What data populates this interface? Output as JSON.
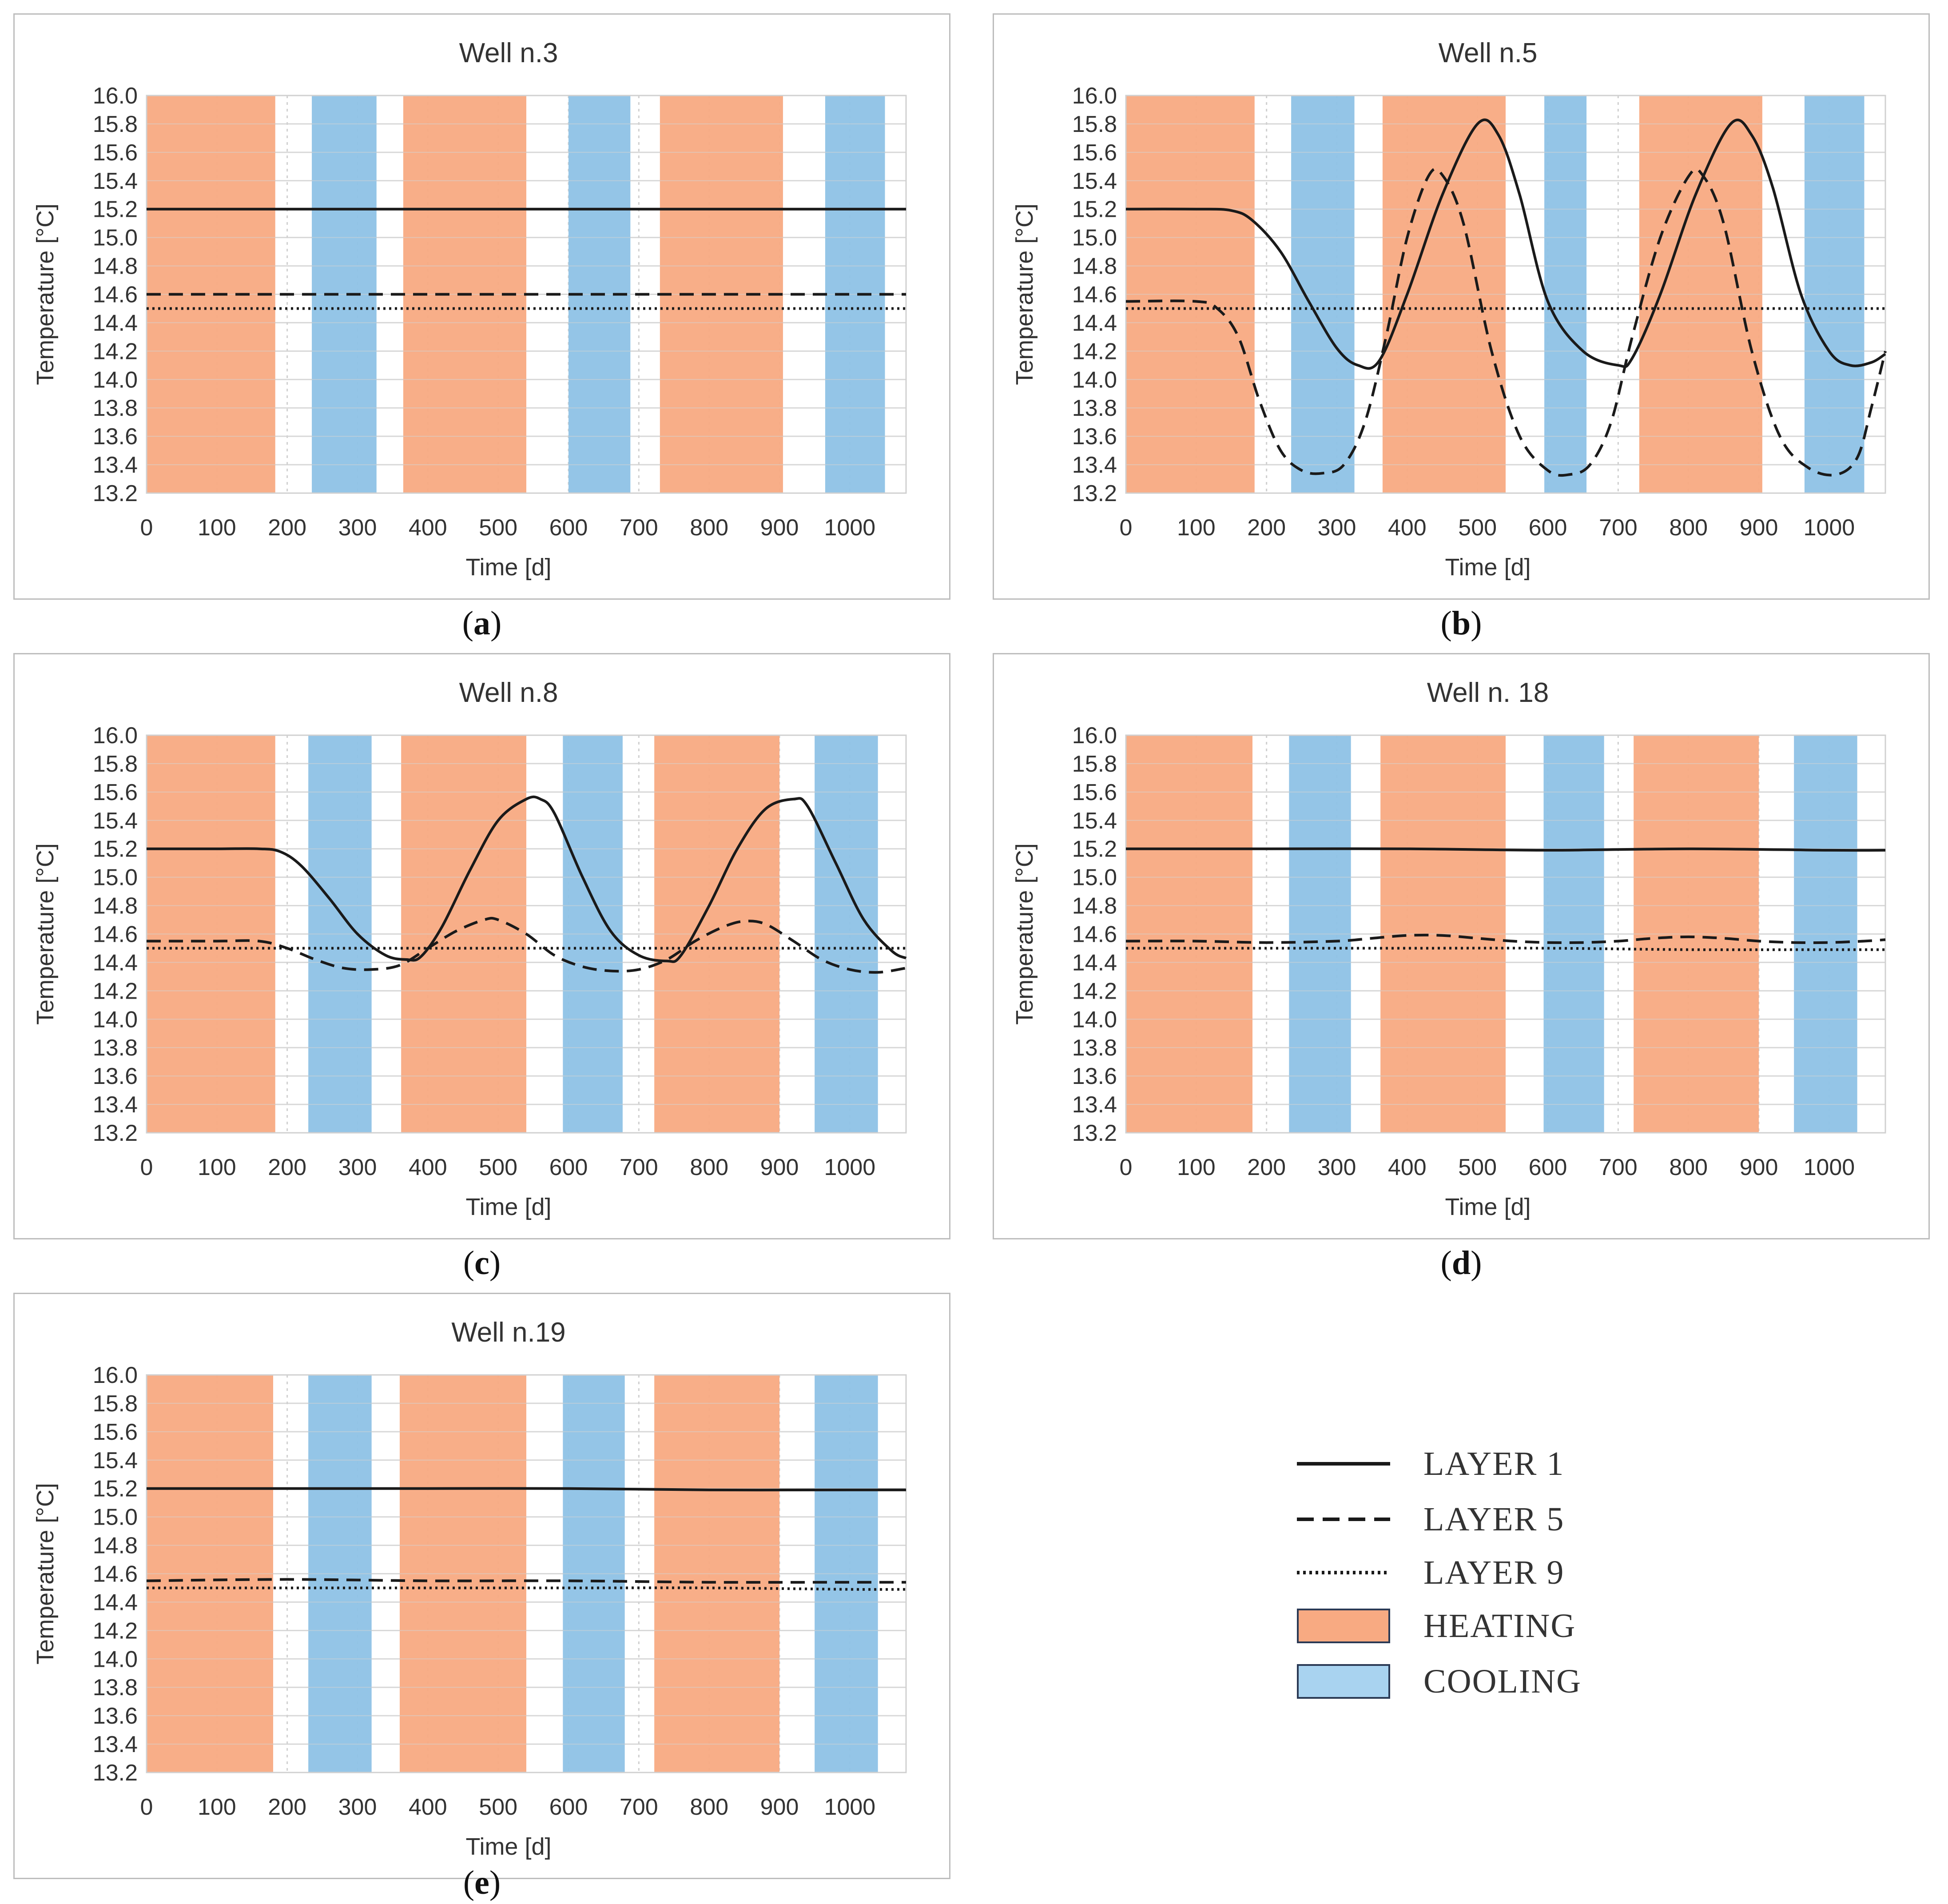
{
  "legend": {
    "layer1": "LAYER 1",
    "layer5": "LAYER 5",
    "layer9": "LAYER 9",
    "heating": "HEATING",
    "cooling": "COOLING"
  },
  "colors": {
    "heating": "#F8AA82",
    "cooling": "#8EC2E6",
    "line_dark": "#1a1a1a",
    "line_brown": "#8B4A2B"
  },
  "chart_data": [
    {
      "type": "line",
      "letter": "a",
      "title": "Well n.3",
      "xlabel": "Time [d]",
      "ylabel": "Temperature [°C]",
      "xlim": [
        0,
        1080
      ],
      "ylim": [
        13.2,
        16.0
      ],
      "xticks": [
        0,
        100,
        200,
        300,
        400,
        500,
        600,
        700,
        800,
        900,
        1000
      ],
      "yticks": [
        13.2,
        13.4,
        13.6,
        13.8,
        14.0,
        14.2,
        14.4,
        14.6,
        14.8,
        15.0,
        15.2,
        15.4,
        15.6,
        15.8,
        16.0
      ],
      "heating_periods": [
        [
          0,
          183
        ],
        [
          365,
          540
        ],
        [
          730,
          905
        ]
      ],
      "cooling_periods": [
        [
          235,
          327
        ],
        [
          600,
          688
        ],
        [
          965,
          1050
        ]
      ],
      "series": [
        {
          "name": "LAYER 1",
          "x": [
            0,
            200,
            400,
            600,
            800,
            1000,
            1080
          ],
          "y": [
            15.2,
            15.2,
            15.2,
            15.2,
            15.2,
            15.2,
            15.2
          ]
        },
        {
          "name": "LAYER 5",
          "x": [
            0,
            200,
            400,
            600,
            800,
            1000,
            1080
          ],
          "y": [
            14.6,
            14.6,
            14.6,
            14.6,
            14.6,
            14.6,
            14.6
          ]
        },
        {
          "name": "LAYER 9",
          "x": [
            0,
            200,
            400,
            600,
            800,
            1000,
            1080
          ],
          "y": [
            14.5,
            14.5,
            14.5,
            14.5,
            14.5,
            14.5,
            14.5
          ]
        }
      ]
    },
    {
      "type": "line",
      "letter": "b",
      "title": "Well n.5",
      "xlabel": "Time [d]",
      "ylabel": "Temperature [°C]",
      "xlim": [
        0,
        1080
      ],
      "ylim": [
        13.2,
        16.0
      ],
      "xticks": [
        0,
        100,
        200,
        300,
        400,
        500,
        600,
        700,
        800,
        900,
        1000
      ],
      "yticks": [
        13.2,
        13.4,
        13.6,
        13.8,
        14.0,
        14.2,
        14.4,
        14.6,
        14.8,
        15.0,
        15.2,
        15.4,
        15.6,
        15.8,
        16.0
      ],
      "heating_periods": [
        [
          0,
          183
        ],
        [
          365,
          540
        ],
        [
          730,
          905
        ]
      ],
      "cooling_periods": [
        [
          235,
          325
        ],
        [
          595,
          655
        ],
        [
          965,
          1050
        ]
      ],
      "series": [
        {
          "name": "LAYER 1",
          "x": [
            0,
            100,
            150,
            180,
            220,
            260,
            300,
            330,
            360,
            400,
            450,
            500,
            530,
            560,
            600,
            650,
            700,
            720,
            760,
            810,
            860,
            890,
            920,
            960,
            1000,
            1030,
            1060,
            1080
          ],
          "y": [
            15.2,
            15.2,
            15.19,
            15.12,
            14.9,
            14.55,
            14.22,
            14.1,
            14.13,
            14.6,
            15.3,
            15.8,
            15.72,
            15.3,
            14.55,
            14.2,
            14.1,
            14.15,
            14.6,
            15.3,
            15.8,
            15.72,
            15.35,
            14.6,
            14.2,
            14.1,
            14.12,
            14.18
          ]
        },
        {
          "name": "LAYER 5",
          "x": [
            0,
            100,
            130,
            160,
            190,
            220,
            250,
            280,
            310,
            340,
            370,
            400,
            430,
            450,
            480,
            520,
            560,
            600,
            630,
            660,
            690,
            720,
            760,
            800,
            820,
            850,
            890,
            930,
            970,
            1010,
            1040,
            1060,
            1080
          ],
          "y": [
            14.55,
            14.55,
            14.5,
            14.3,
            13.85,
            13.5,
            13.36,
            13.34,
            13.4,
            13.7,
            14.3,
            15.0,
            15.43,
            15.44,
            15.1,
            14.2,
            13.6,
            13.36,
            13.33,
            13.4,
            13.7,
            14.3,
            15.0,
            15.43,
            15.44,
            15.1,
            14.2,
            13.6,
            13.38,
            13.33,
            13.45,
            13.8,
            14.2
          ]
        },
        {
          "name": "LAYER 9",
          "x": [
            0,
            200,
            400,
            600,
            800,
            1000,
            1080
          ],
          "y": [
            14.5,
            14.5,
            14.5,
            14.5,
            14.5,
            14.5,
            14.5
          ]
        }
      ]
    },
    {
      "type": "line",
      "letter": "c",
      "title": "Well n.8",
      "xlabel": "Time [d]",
      "ylabel": "Temperature [°C]",
      "xlim": [
        0,
        1080
      ],
      "ylim": [
        13.2,
        16.0
      ],
      "xticks": [
        0,
        100,
        200,
        300,
        400,
        500,
        600,
        700,
        800,
        900,
        1000
      ],
      "yticks": [
        13.2,
        13.4,
        13.6,
        13.8,
        14.0,
        14.2,
        14.4,
        14.6,
        14.8,
        15.0,
        15.2,
        15.4,
        15.6,
        15.8,
        16.0
      ],
      "heating_periods": [
        [
          0,
          183
        ],
        [
          362,
          540
        ],
        [
          722,
          900
        ]
      ],
      "cooling_periods": [
        [
          230,
          320
        ],
        [
          592,
          677
        ],
        [
          950,
          1040
        ]
      ],
      "series": [
        {
          "name": "LAYER 1",
          "x": [
            0,
            100,
            160,
            190,
            220,
            260,
            300,
            340,
            370,
            390,
            420,
            460,
            500,
            540,
            560,
            580,
            620,
            660,
            700,
            740,
            760,
            800,
            840,
            880,
            920,
            940,
            980,
            1020,
            1060,
            1080
          ],
          "y": [
            15.2,
            15.2,
            15.2,
            15.18,
            15.08,
            14.85,
            14.6,
            14.45,
            14.42,
            14.44,
            14.65,
            15.05,
            15.4,
            15.55,
            15.55,
            15.45,
            15.0,
            14.62,
            14.45,
            14.41,
            14.45,
            14.8,
            15.2,
            15.48,
            15.55,
            15.5,
            15.1,
            14.7,
            14.48,
            14.43
          ]
        },
        {
          "name": "LAYER 5",
          "x": [
            0,
            100,
            160,
            200,
            240,
            280,
            320,
            360,
            400,
            440,
            480,
            500,
            540,
            580,
            620,
            660,
            700,
            740,
            780,
            820,
            850,
            880,
            920,
            960,
            1000,
            1040,
            1080
          ],
          "y": [
            14.55,
            14.55,
            14.55,
            14.5,
            14.42,
            14.36,
            14.35,
            14.38,
            14.5,
            14.62,
            14.7,
            14.7,
            14.6,
            14.45,
            14.37,
            14.34,
            14.35,
            14.42,
            14.55,
            14.65,
            14.69,
            14.67,
            14.55,
            14.42,
            14.35,
            14.33,
            14.36
          ]
        },
        {
          "name": "LAYER 9",
          "x": [
            0,
            200,
            400,
            600,
            800,
            1000,
            1080
          ],
          "y": [
            14.5,
            14.5,
            14.5,
            14.5,
            14.5,
            14.5,
            14.5
          ]
        }
      ]
    },
    {
      "type": "line",
      "letter": "d",
      "title": "Well n. 18",
      "xlabel": "Time [d]",
      "ylabel": "Temperature [°C]",
      "xlim": [
        0,
        1080
      ],
      "ylim": [
        13.2,
        16.0
      ],
      "xticks": [
        0,
        100,
        200,
        300,
        400,
        500,
        600,
        700,
        800,
        900,
        1000
      ],
      "yticks": [
        13.2,
        13.4,
        13.6,
        13.8,
        14.0,
        14.2,
        14.4,
        14.6,
        14.8,
        15.0,
        15.2,
        15.4,
        15.6,
        15.8,
        16.0
      ],
      "heating_periods": [
        [
          0,
          180
        ],
        [
          362,
          540
        ],
        [
          722,
          900
        ]
      ],
      "cooling_periods": [
        [
          232,
          320
        ],
        [
          594,
          680
        ],
        [
          950,
          1040
        ]
      ],
      "series": [
        {
          "name": "LAYER 1",
          "x": [
            0,
            200,
            400,
            600,
            800,
            1000,
            1080
          ],
          "y": [
            15.2,
            15.2,
            15.2,
            15.19,
            15.2,
            15.19,
            15.19
          ]
        },
        {
          "name": "LAYER 5",
          "x": [
            0,
            100,
            200,
            300,
            350,
            400,
            450,
            500,
            550,
            600,
            650,
            700,
            750,
            800,
            850,
            900,
            950,
            1000,
            1050,
            1080
          ],
          "y": [
            14.55,
            14.55,
            14.54,
            14.55,
            14.57,
            14.59,
            14.59,
            14.57,
            14.55,
            14.54,
            14.54,
            14.55,
            14.57,
            14.58,
            14.57,
            14.55,
            14.54,
            14.54,
            14.55,
            14.56
          ]
        },
        {
          "name": "LAYER 9",
          "x": [
            0,
            200,
            400,
            600,
            800,
            1000,
            1080
          ],
          "y": [
            14.5,
            14.5,
            14.5,
            14.5,
            14.49,
            14.49,
            14.49
          ]
        }
      ]
    },
    {
      "type": "line",
      "letter": "e",
      "title": "Well n.19",
      "xlabel": "Time [d]",
      "ylabel": "Temperature [°C]",
      "xlim": [
        0,
        1080
      ],
      "ylim": [
        13.2,
        16.0
      ],
      "xticks": [
        0,
        100,
        200,
        300,
        400,
        500,
        600,
        700,
        800,
        900,
        1000
      ],
      "yticks": [
        13.2,
        13.4,
        13.6,
        13.8,
        14.0,
        14.2,
        14.4,
        14.6,
        14.8,
        15.0,
        15.2,
        15.4,
        15.6,
        15.8,
        16.0
      ],
      "heating_periods": [
        [
          0,
          180
        ],
        [
          360,
          540
        ],
        [
          722,
          900
        ]
      ],
      "cooling_periods": [
        [
          230,
          320
        ],
        [
          592,
          680
        ],
        [
          950,
          1040
        ]
      ],
      "series": [
        {
          "name": "LAYER 1",
          "x": [
            0,
            200,
            400,
            600,
            800,
            1000,
            1080
          ],
          "y": [
            15.2,
            15.2,
            15.2,
            15.2,
            15.19,
            15.19,
            15.19
          ]
        },
        {
          "name": "LAYER 5",
          "x": [
            0,
            200,
            400,
            600,
            800,
            1000,
            1080
          ],
          "y": [
            14.55,
            14.56,
            14.55,
            14.55,
            14.54,
            14.54,
            14.54
          ]
        },
        {
          "name": "LAYER 9",
          "x": [
            0,
            200,
            400,
            600,
            800,
            1000,
            1080
          ],
          "y": [
            14.5,
            14.5,
            14.5,
            14.5,
            14.5,
            14.49,
            14.49
          ]
        }
      ]
    }
  ]
}
